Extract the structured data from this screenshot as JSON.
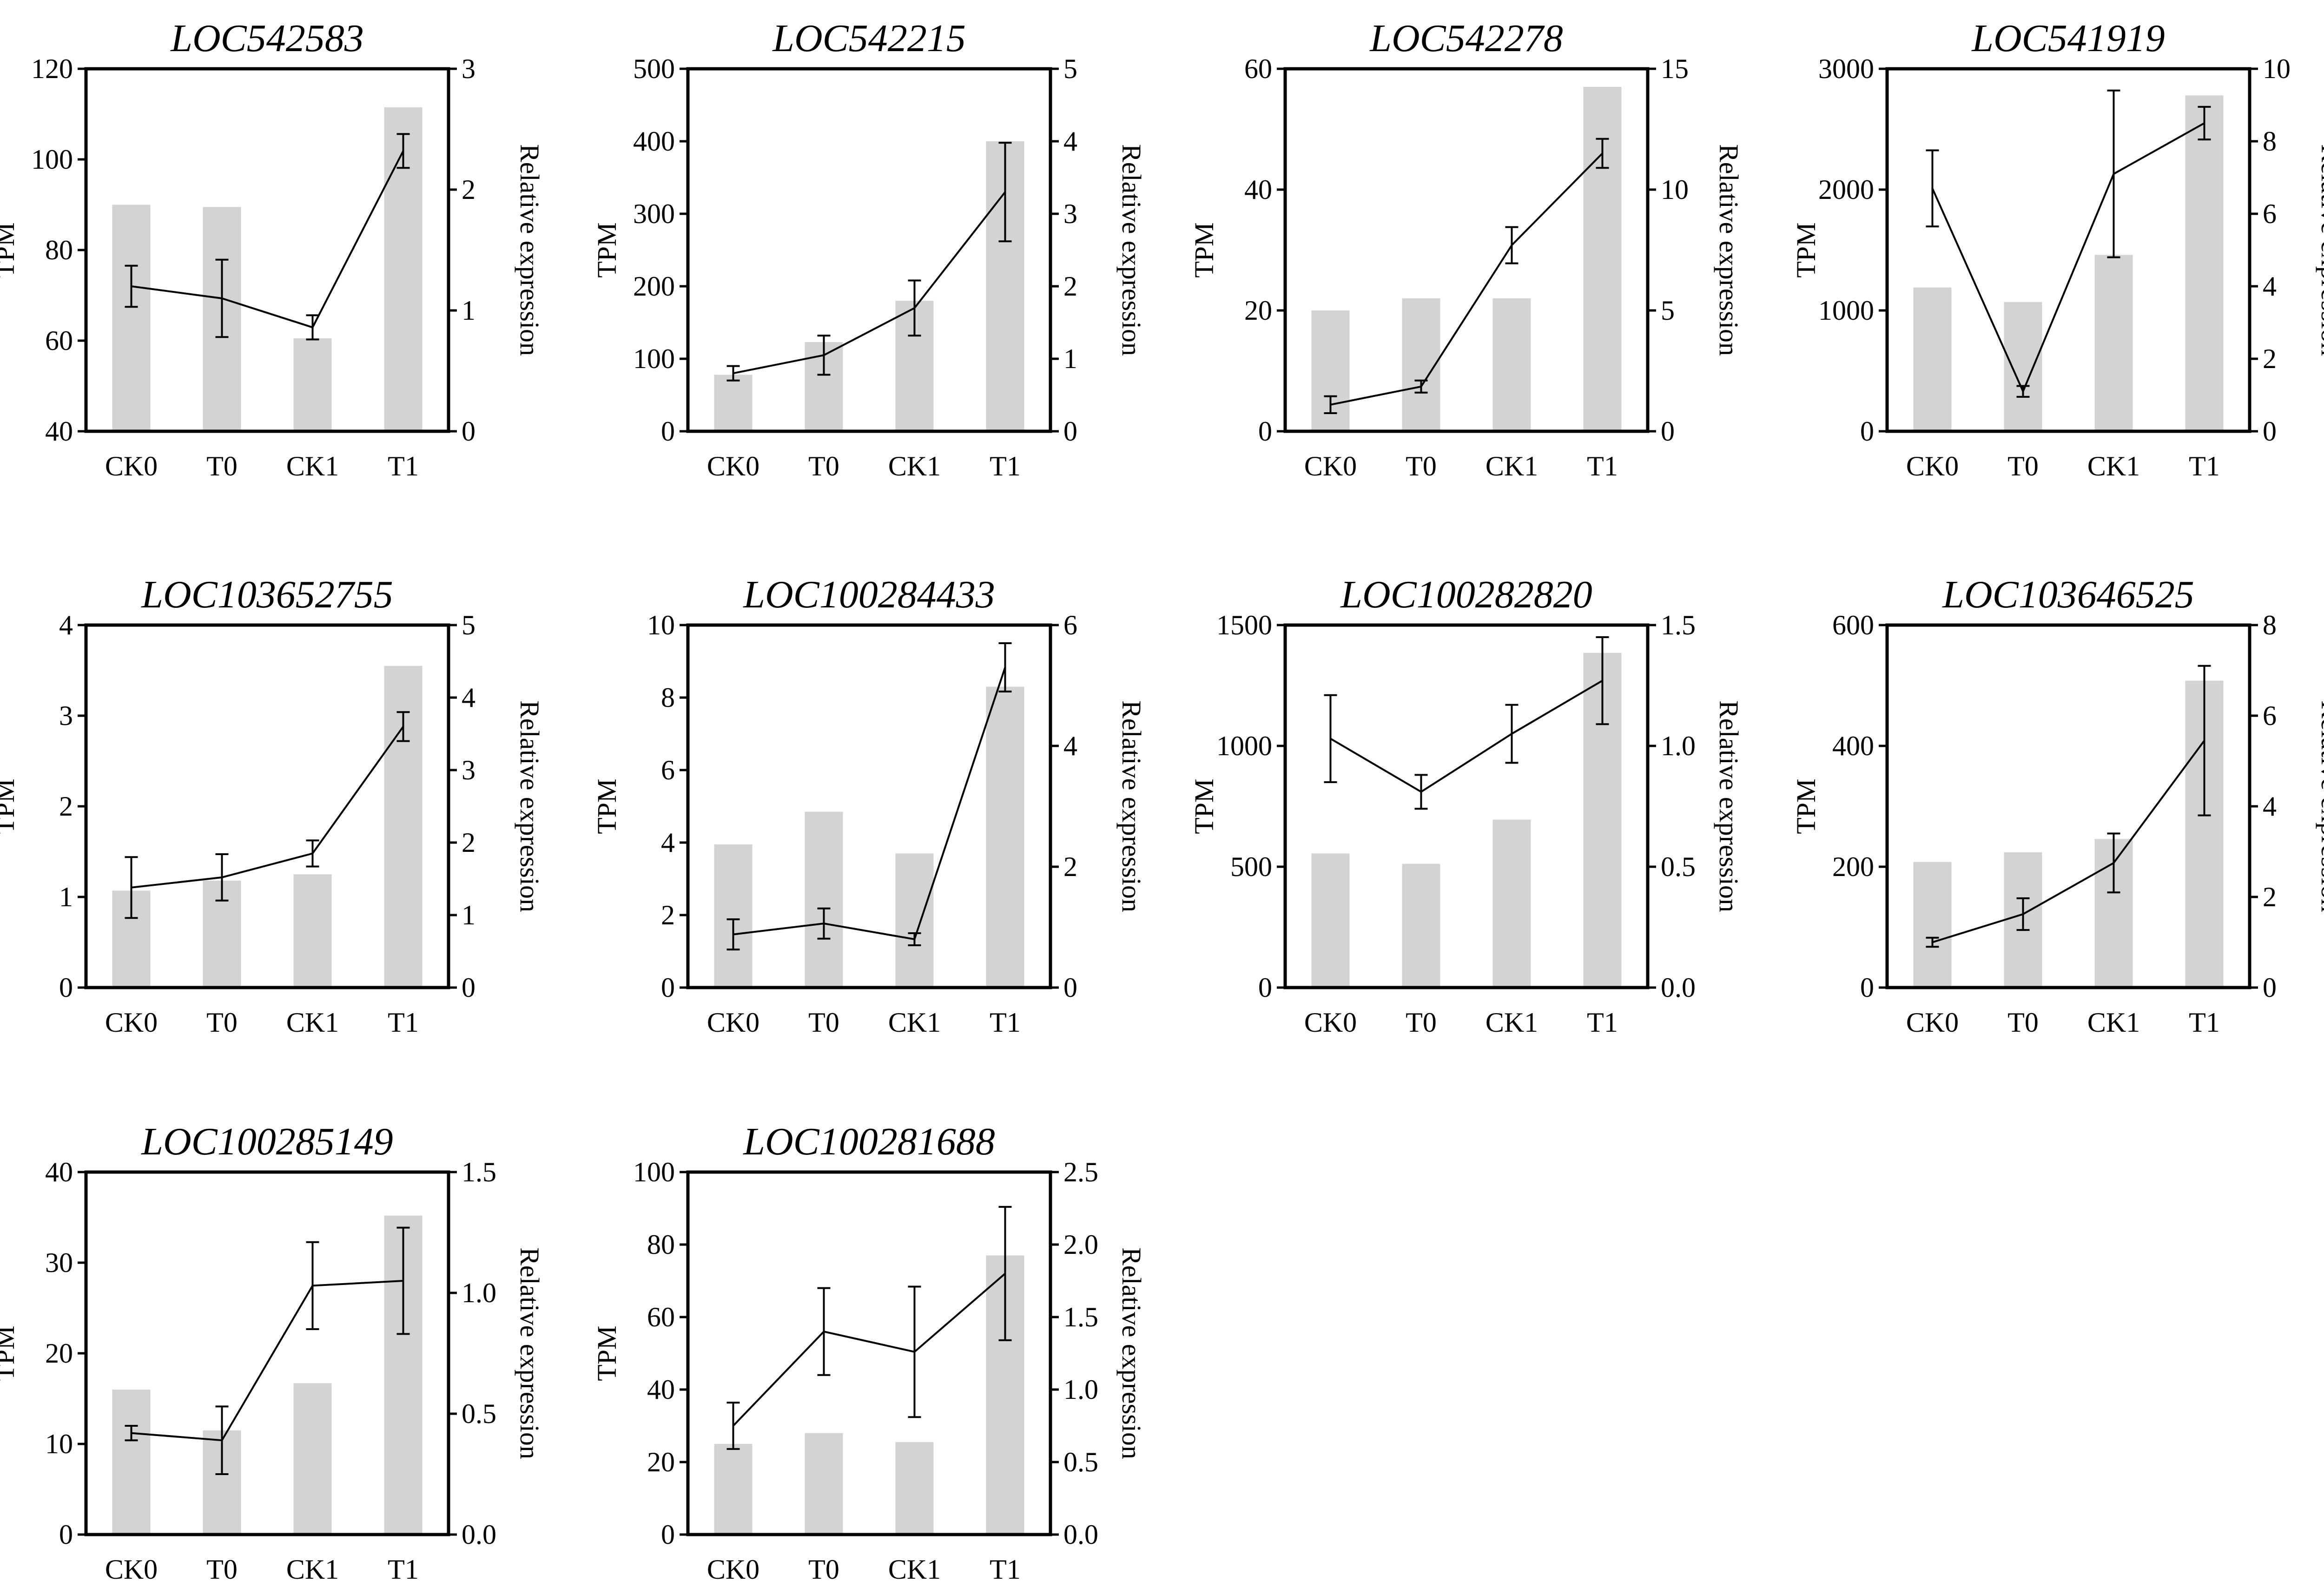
{
  "colors": {
    "bar": "#d3d3d3",
    "line": "#000000",
    "axis": "#000000",
    "background": "#ffffff"
  },
  "chart_data": [
    {
      "type": "bar",
      "title": "LOC542583",
      "categories": [
        "CK0",
        "T0",
        "CK1",
        "T1"
      ],
      "ylabel": "TPM",
      "y2label": "Relative expression",
      "ylim": [
        40,
        120
      ],
      "y2lim": [
        0,
        3
      ],
      "yticks": [
        "40",
        "60",
        "80",
        "100",
        "120"
      ],
      "y2ticks": [
        "0",
        "1",
        "2",
        "3"
      ],
      "series": [
        {
          "axis": "left",
          "render": "bar",
          "values": [
            90,
            89.5,
            60.5,
            111.5
          ]
        },
        {
          "axis": "right",
          "render": "line",
          "values": [
            1.2,
            1.1,
            0.86,
            2.32
          ],
          "errors": [
            0.17,
            0.32,
            0.1,
            0.14
          ]
        }
      ]
    },
    {
      "type": "bar",
      "title": "LOC542215",
      "categories": [
        "CK0",
        "T0",
        "CK1",
        "T1"
      ],
      "ylabel": "TPM",
      "y2label": "Relative expression",
      "ylim": [
        0,
        500
      ],
      "y2lim": [
        0,
        5
      ],
      "yticks": [
        "0",
        "100",
        "200",
        "300",
        "400",
        "500"
      ],
      "y2ticks": [
        "0",
        "1",
        "2",
        "3",
        "4",
        "5"
      ],
      "series": [
        {
          "axis": "left",
          "render": "bar",
          "values": [
            78,
            123,
            180,
            400
          ]
        },
        {
          "axis": "right",
          "render": "line",
          "values": [
            0.8,
            1.05,
            1.7,
            3.3
          ],
          "errors": [
            0.1,
            0.27,
            0.38,
            0.68
          ]
        }
      ]
    },
    {
      "type": "bar",
      "title": "LOC542278",
      "categories": [
        "CK0",
        "T0",
        "CK1",
        "T1"
      ],
      "ylabel": "TPM",
      "y2label": "Relative expression",
      "ylim": [
        0,
        60
      ],
      "y2lim": [
        0,
        15
      ],
      "yticks": [
        "0",
        "20",
        "40",
        "60"
      ],
      "y2ticks": [
        "0",
        "5",
        "10",
        "15"
      ],
      "series": [
        {
          "axis": "left",
          "render": "bar",
          "values": [
            20,
            22,
            22,
            57
          ]
        },
        {
          "axis": "right",
          "render": "line",
          "values": [
            1.1,
            1.85,
            7.7,
            11.5
          ],
          "errors": [
            0.35,
            0.25,
            0.75,
            0.6
          ]
        }
      ]
    },
    {
      "type": "bar",
      "title": "LOC541919",
      "categories": [
        "CK0",
        "T0",
        "CK1",
        "T1"
      ],
      "ylabel": "TPM",
      "y2label": "Relative expression",
      "ylim": [
        0,
        3000
      ],
      "y2lim": [
        0,
        10
      ],
      "yticks": [
        "0",
        "1000",
        "2000",
        "3000"
      ],
      "y2ticks": [
        "0",
        "2",
        "4",
        "6",
        "8",
        "10"
      ],
      "series": [
        {
          "axis": "left",
          "render": "bar",
          "values": [
            1190,
            1070,
            1460,
            2780
          ]
        },
        {
          "axis": "right",
          "render": "line",
          "values": [
            6.7,
            1.1,
            7.1,
            8.5
          ],
          "errors": [
            1.05,
            0.15,
            2.3,
            0.45
          ]
        }
      ]
    },
    {
      "type": "bar",
      "title": "LOC103652755",
      "categories": [
        "CK0",
        "T0",
        "CK1",
        "T1"
      ],
      "ylabel": "TPM",
      "y2label": "Relative expression",
      "ylim": [
        0,
        4
      ],
      "y2lim": [
        0,
        5
      ],
      "yticks": [
        "0",
        "1",
        "2",
        "3",
        "4"
      ],
      "y2ticks": [
        "0",
        "1",
        "2",
        "3",
        "4",
        "5"
      ],
      "series": [
        {
          "axis": "left",
          "render": "bar",
          "values": [
            1.07,
            1.18,
            1.25,
            3.55
          ]
        },
        {
          "axis": "right",
          "render": "line",
          "values": [
            1.38,
            1.52,
            1.85,
            3.6
          ],
          "errors": [
            0.42,
            0.32,
            0.18,
            0.2
          ]
        }
      ]
    },
    {
      "type": "bar",
      "title": "LOC100284433",
      "categories": [
        "CK0",
        "T0",
        "CK1",
        "T1"
      ],
      "ylabel": "TPM",
      "y2label": "Relative expression",
      "ylim": [
        0,
        10
      ],
      "y2lim": [
        0,
        6
      ],
      "yticks": [
        "0",
        "2",
        "4",
        "6",
        "8",
        "10"
      ],
      "y2ticks": [
        "0",
        "2",
        "4",
        "6"
      ],
      "series": [
        {
          "axis": "left",
          "render": "bar",
          "values": [
            3.95,
            4.85,
            3.7,
            8.3
          ]
        },
        {
          "axis": "right",
          "render": "line",
          "values": [
            0.88,
            1.06,
            0.8,
            5.3
          ],
          "errors": [
            0.25,
            0.25,
            0.1,
            0.4
          ]
        }
      ]
    },
    {
      "type": "bar",
      "title": "LOC100282820",
      "categories": [
        "CK0",
        "T0",
        "CK1",
        "T1"
      ],
      "ylabel": "TPM",
      "y2label": "Relative expression",
      "ylim": [
        0,
        1500
      ],
      "y2lim": [
        0.0,
        1.5
      ],
      "yticks": [
        "0",
        "500",
        "1000",
        "1500"
      ],
      "y2ticks": [
        "0.0",
        "0.5",
        "1.0",
        "1.5"
      ],
      "series": [
        {
          "axis": "left",
          "render": "bar",
          "values": [
            555,
            512,
            695,
            1385
          ]
        },
        {
          "axis": "right",
          "render": "line",
          "values": [
            1.03,
            0.81,
            1.05,
            1.27
          ],
          "errors": [
            0.18,
            0.07,
            0.12,
            0.18
          ]
        }
      ]
    },
    {
      "type": "bar",
      "title": "LOC103646525",
      "categories": [
        "CK0",
        "T0",
        "CK1",
        "T1"
      ],
      "ylabel": "TPM",
      "y2label": "Relative expression",
      "ylim": [
        0,
        600
      ],
      "y2lim": [
        0,
        8
      ],
      "yticks": [
        "0",
        "200",
        "400",
        "600"
      ],
      "y2ticks": [
        "0",
        "2",
        "4",
        "6",
        "8"
      ],
      "series": [
        {
          "axis": "left",
          "render": "bar",
          "values": [
            208,
            224,
            246,
            508
          ]
        },
        {
          "axis": "right",
          "render": "line",
          "values": [
            1.0,
            1.62,
            2.75,
            5.45
          ],
          "errors": [
            0.1,
            0.35,
            0.65,
            1.65
          ]
        }
      ]
    },
    {
      "type": "bar",
      "title": "LOC100285149",
      "categories": [
        "CK0",
        "T0",
        "CK1",
        "T1"
      ],
      "ylabel": "TPM",
      "y2label": "Relative expression",
      "ylim": [
        0,
        40
      ],
      "y2lim": [
        0.0,
        1.5
      ],
      "yticks": [
        "0",
        "10",
        "20",
        "30",
        "40"
      ],
      "y2ticks": [
        "0.0",
        "0.5",
        "1.0",
        "1.5"
      ],
      "series": [
        {
          "axis": "left",
          "render": "bar",
          "values": [
            16,
            11.5,
            16.7,
            35.2
          ]
        },
        {
          "axis": "right",
          "render": "line",
          "values": [
            0.42,
            0.39,
            1.03,
            1.05
          ],
          "errors": [
            0.03,
            0.14,
            0.18,
            0.22
          ]
        }
      ]
    },
    {
      "type": "bar",
      "title": "LOC100281688",
      "categories": [
        "CK0",
        "T0",
        "CK1",
        "T1"
      ],
      "ylabel": "TPM",
      "y2label": "Relative expression",
      "ylim": [
        0,
        100
      ],
      "y2lim": [
        0.0,
        2.5
      ],
      "yticks": [
        "0",
        "20",
        "40",
        "60",
        "80",
        "100"
      ],
      "y2ticks": [
        "0.0",
        "0.5",
        "1.0",
        "1.5",
        "2.0",
        "2.5"
      ],
      "series": [
        {
          "axis": "left",
          "render": "bar",
          "values": [
            25,
            28,
            25.5,
            77
          ]
        },
        {
          "axis": "right",
          "render": "line",
          "values": [
            0.75,
            1.4,
            1.26,
            1.8
          ],
          "errors": [
            0.16,
            0.3,
            0.45,
            0.46
          ]
        }
      ]
    }
  ]
}
